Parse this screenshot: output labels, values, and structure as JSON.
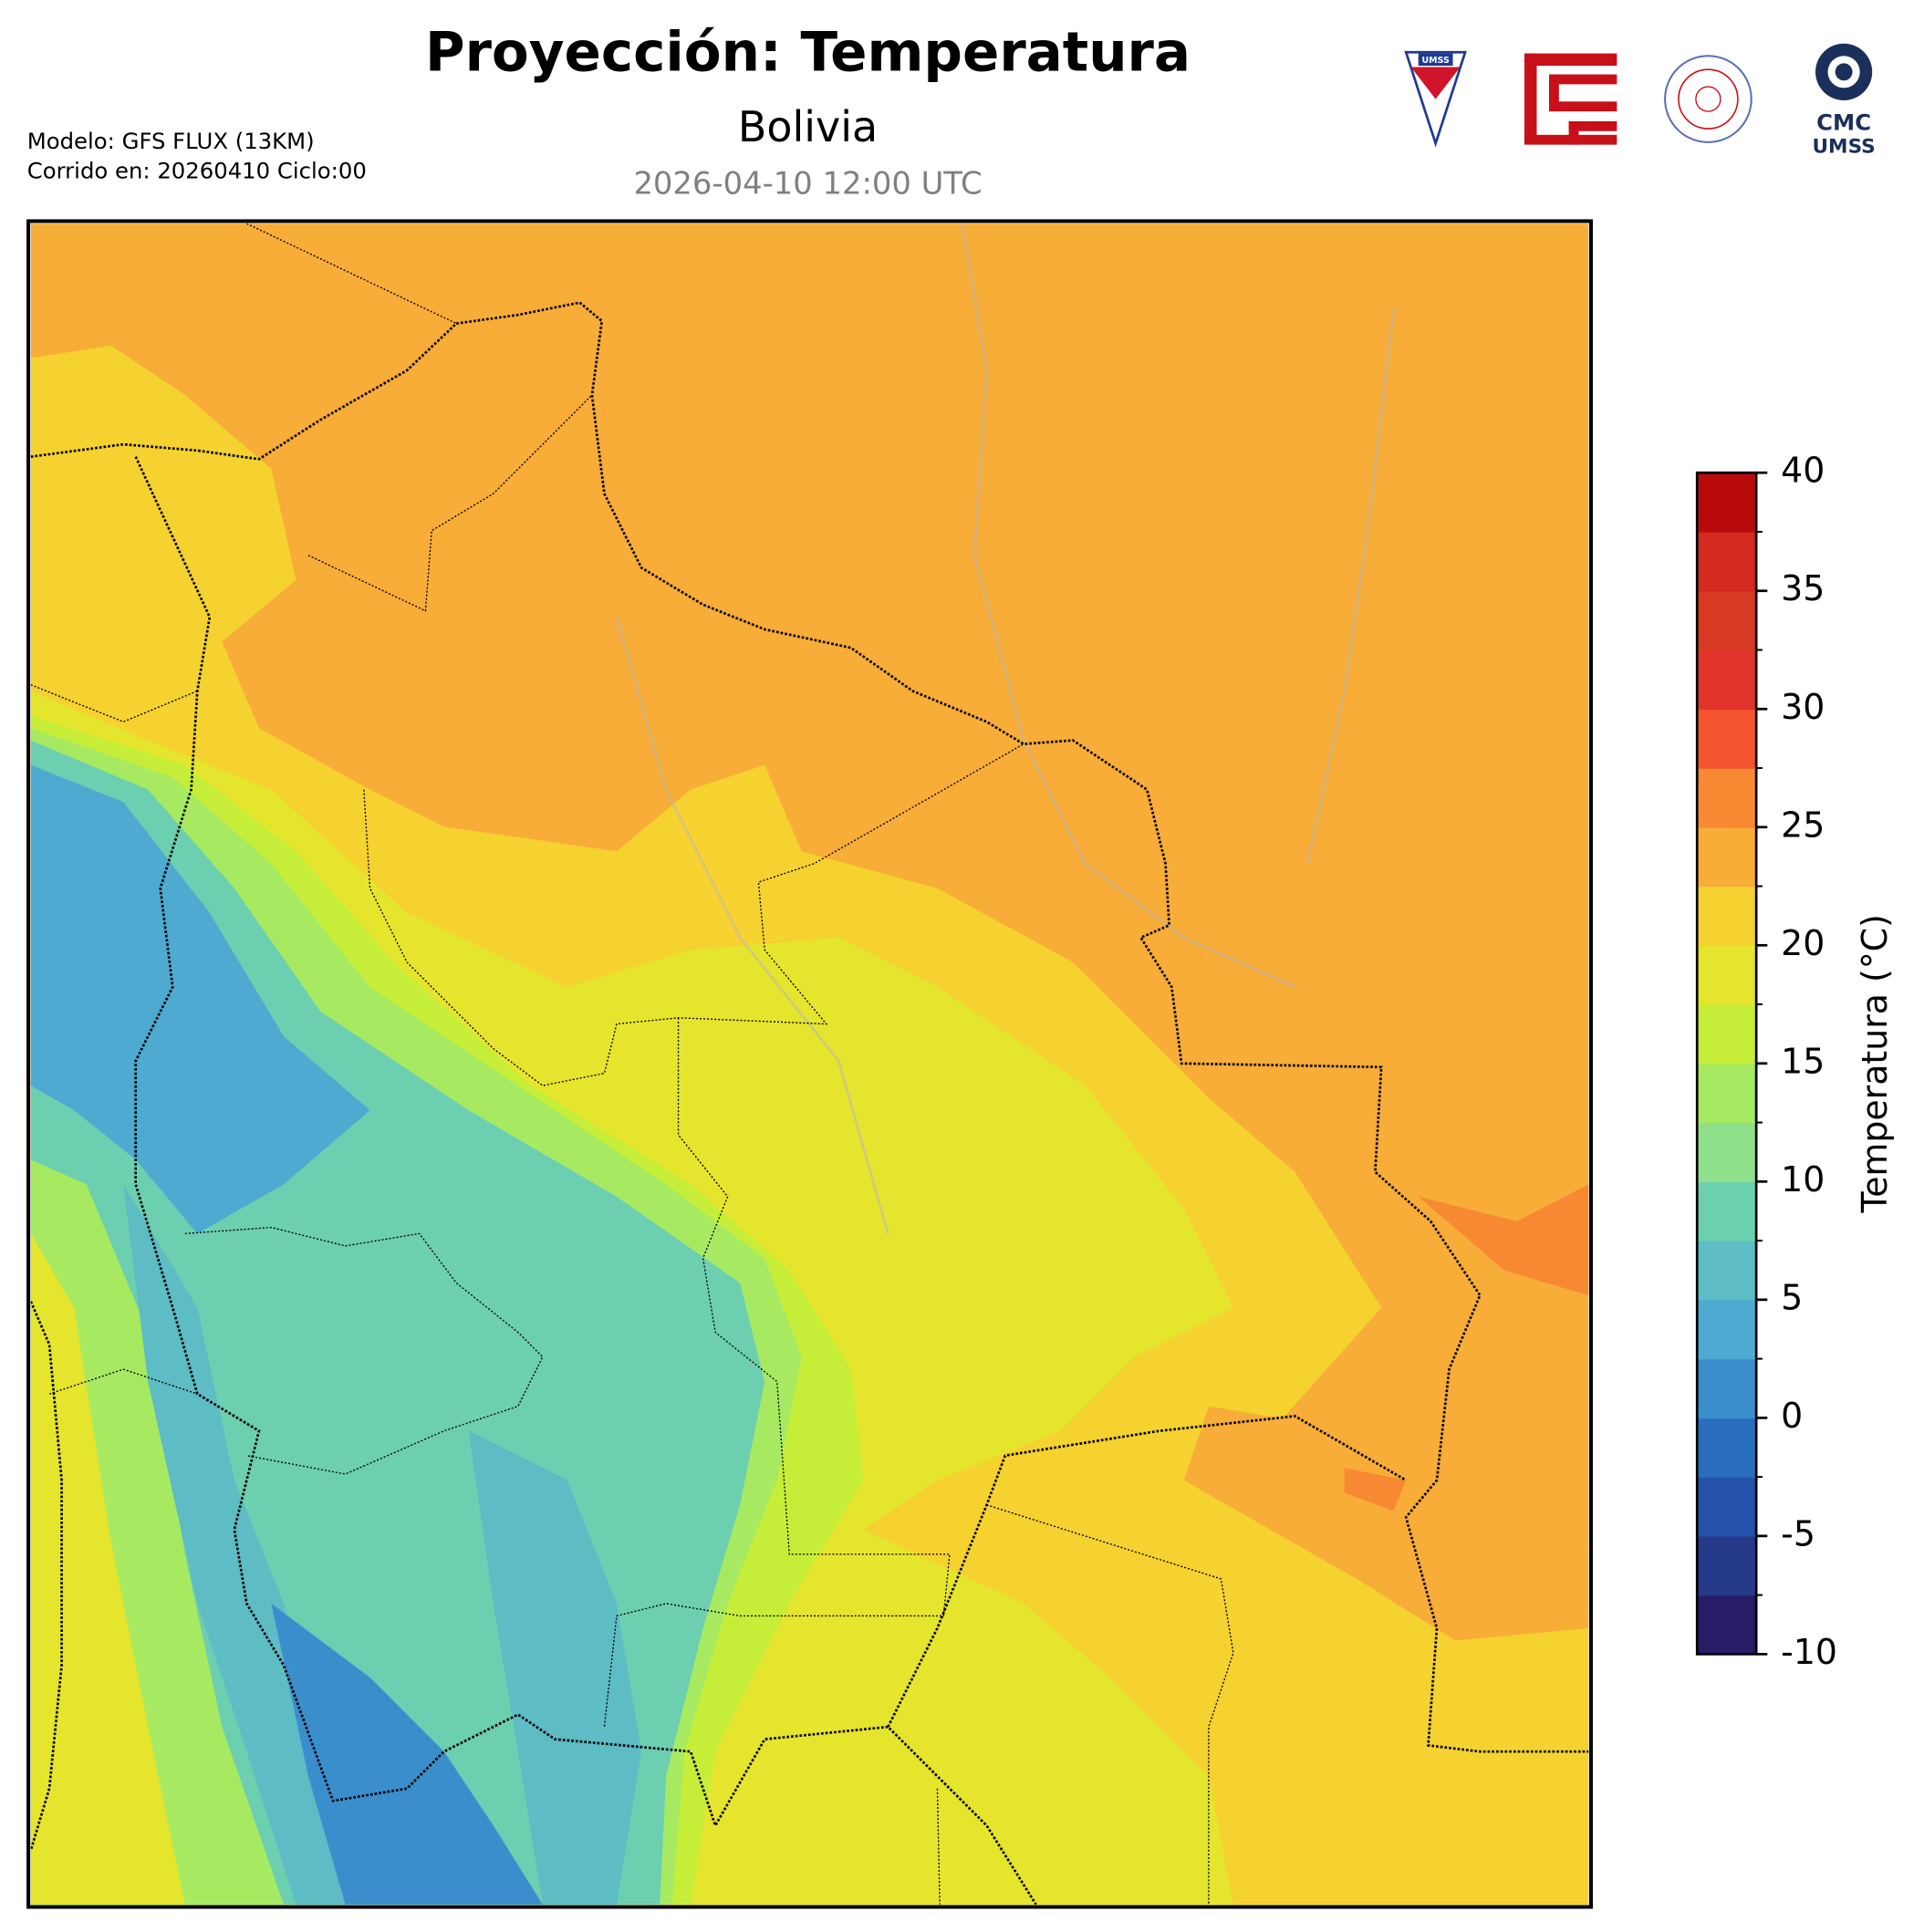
{
  "header": {
    "title": "Proyección: Temperatura",
    "subtitle": "Bolivia",
    "date": "2026-04-10 12:00 UTC",
    "model": "Modelo: GFS FLUX (13KM)",
    "run": "Corrido en: 20260410 Ciclo:00"
  },
  "logos": {
    "umss": "UMSS",
    "cmc": "CMC",
    "cmc_sub": "UMSS"
  },
  "colorbar": {
    "label": "Temperatura (°C)",
    "lim": [
      -10,
      40
    ],
    "ticks": [
      -10,
      -5,
      0,
      5,
      10,
      15,
      20,
      25,
      30,
      35,
      40
    ],
    "colors": [
      "#271c66",
      "#263a8a",
      "#2553ab",
      "#2a6fbe",
      "#3b8ecc",
      "#4eaad0",
      "#5dbcc4",
      "#6ccfb0",
      "#8fe08a",
      "#a7ea62",
      "#c6ee38",
      "#e5e52e",
      "#f5d22f",
      "#f8ad38",
      "#f88933",
      "#f3542f",
      "#e0332b",
      "#d63a22",
      "#d22a1f",
      "#b90b0b"
    ]
  }
}
